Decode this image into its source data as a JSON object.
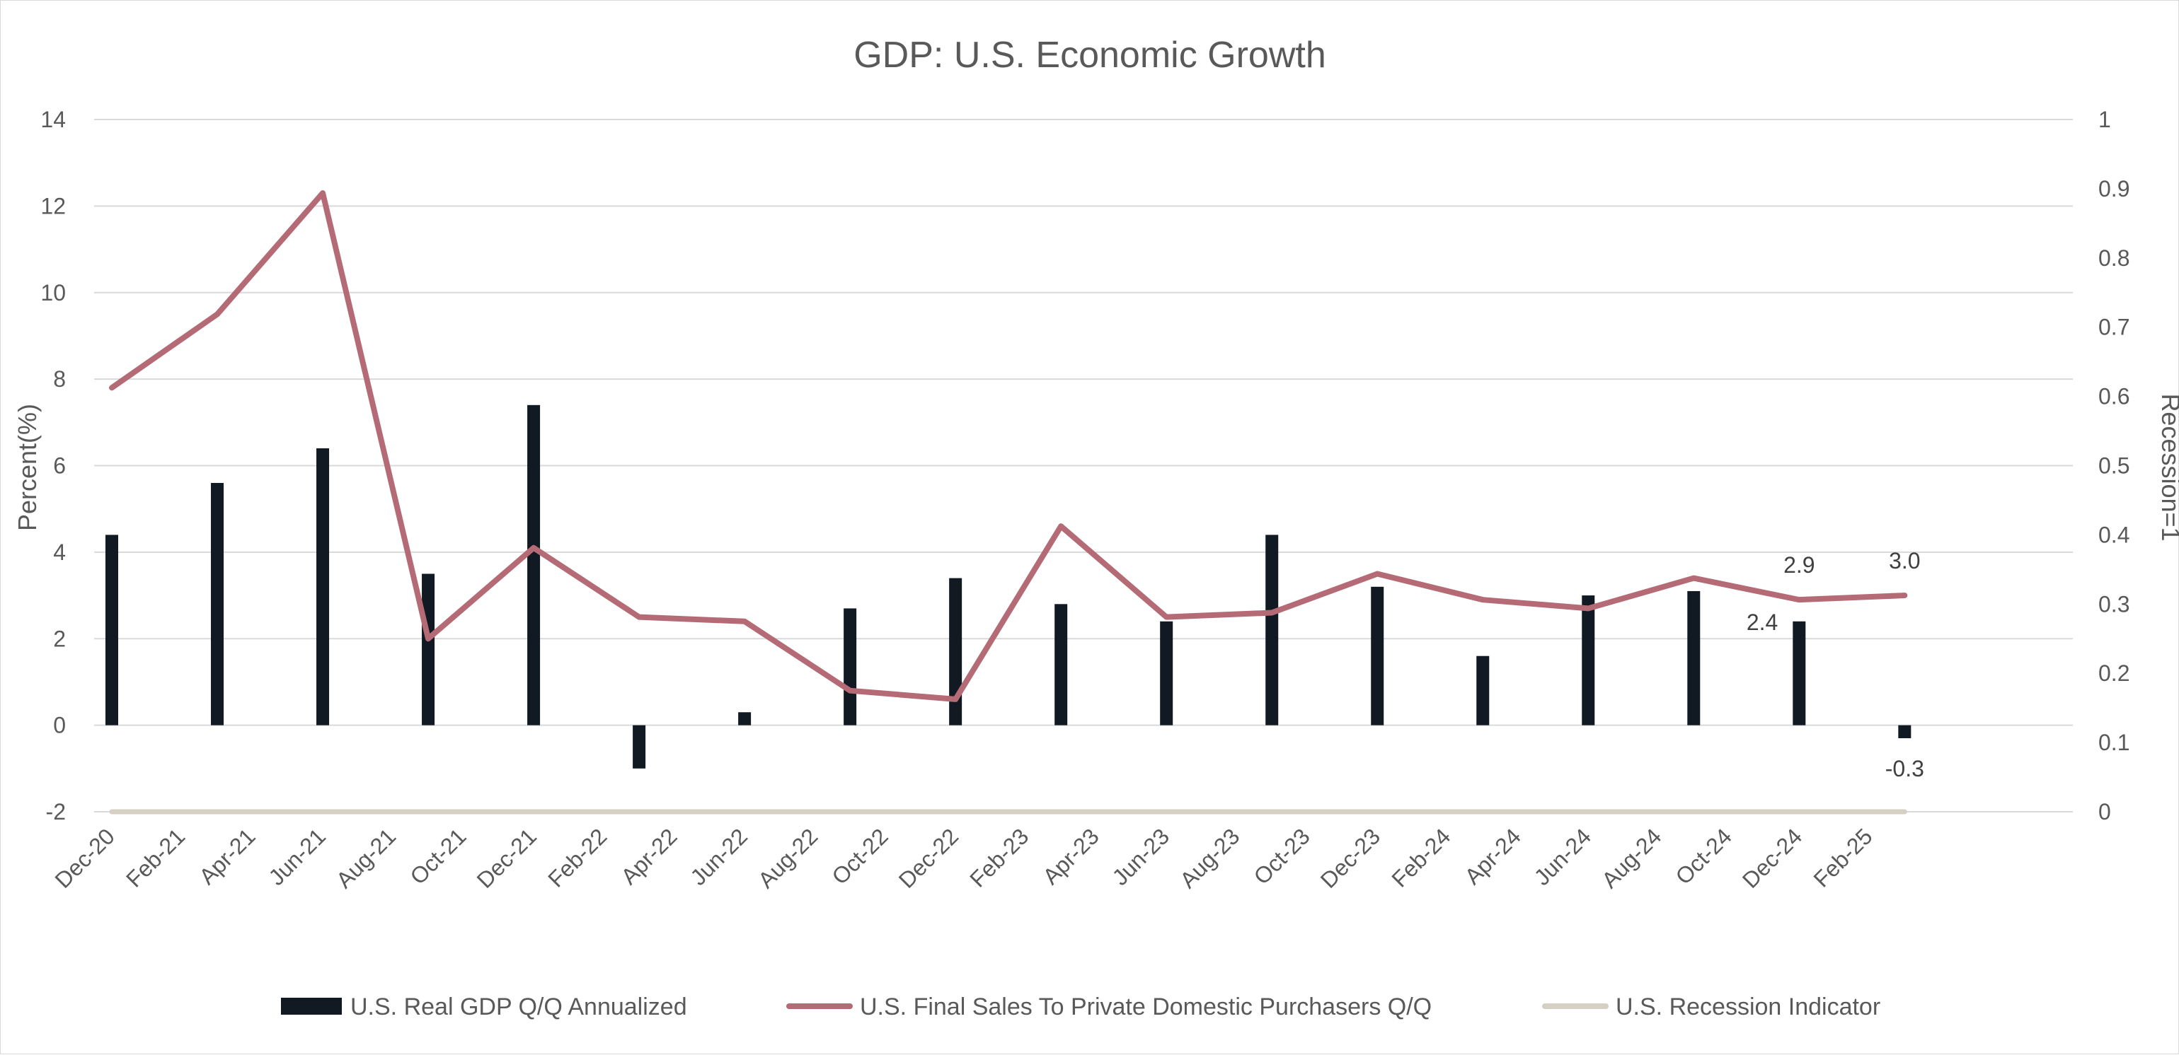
{
  "chart_data": {
    "type": "bar",
    "title": "GDP: U.S. Economic Growth",
    "ylabel": "Percent(%)",
    "y2label": "Recession=1",
    "ylim": [
      -2,
      14
    ],
    "y_ticks": [
      -2,
      0,
      2,
      4,
      6,
      8,
      10,
      12,
      14
    ],
    "y2lim": [
      0,
      1
    ],
    "y2_ticks": [
      "0",
      "0.1",
      "0.2",
      "0.3",
      "0.4",
      "0.5",
      "0.6",
      "0.7",
      "0.8",
      "0.9",
      "1"
    ],
    "grid": true,
    "legend_position": "bottom",
    "x_tick_labels": [
      "Dec-20",
      "Feb-21",
      "Apr-21",
      "Jun-21",
      "Aug-21",
      "Oct-21",
      "Dec-21",
      "Feb-22",
      "Apr-22",
      "Jun-22",
      "Aug-22",
      "Oct-22",
      "Dec-22",
      "Feb-23",
      "Apr-23",
      "Jun-23",
      "Aug-23",
      "Oct-23",
      "Dec-23",
      "Feb-24",
      "Apr-24",
      "Jun-24",
      "Aug-24",
      "Oct-24",
      "Dec-24",
      "Feb-25"
    ],
    "categories": [
      "2020-12",
      "2021-03",
      "2021-06",
      "2021-09",
      "2021-12",
      "2022-03",
      "2022-06",
      "2022-09",
      "2022-12",
      "2023-03",
      "2023-06",
      "2023-09",
      "2023-12",
      "2024-03",
      "2024-06",
      "2024-09",
      "2024-12",
      "2025-03"
    ],
    "series": [
      {
        "name": "U.S. Real GDP Q/Q Annualized",
        "type": "bar",
        "axis": "left",
        "color": "#111a22",
        "values": [
          4.4,
          5.6,
          6.4,
          3.5,
          7.4,
          -1.0,
          0.3,
          2.7,
          3.4,
          2.8,
          2.4,
          4.4,
          3.2,
          1.6,
          3.0,
          3.1,
          2.4,
          -0.3
        ]
      },
      {
        "name": "U.S. Final Sales To Private Domestic Purchasers Q/Q",
        "type": "line",
        "axis": "left",
        "color": "#b56b76",
        "values": [
          7.8,
          9.5,
          12.3,
          2.0,
          4.1,
          2.5,
          2.4,
          0.8,
          0.6,
          4.6,
          2.5,
          2.6,
          3.5,
          2.9,
          2.7,
          3.4,
          2.9,
          3.0
        ]
      },
      {
        "name": "U.S. Recession Indicator",
        "type": "line",
        "axis": "right",
        "color": "#d6d0c4",
        "values": [
          0,
          0,
          0,
          0,
          0,
          0,
          0,
          0,
          0,
          0,
          0,
          0,
          0,
          0,
          0,
          0,
          0,
          0
        ]
      }
    ],
    "annotations": [
      {
        "series": 0,
        "index": 16,
        "text": "2.4"
      },
      {
        "series": 0,
        "index": 17,
        "text": "-0.3"
      },
      {
        "series": 1,
        "index": 16,
        "text": "2.9"
      },
      {
        "series": 1,
        "index": 17,
        "text": "3.0"
      }
    ]
  }
}
